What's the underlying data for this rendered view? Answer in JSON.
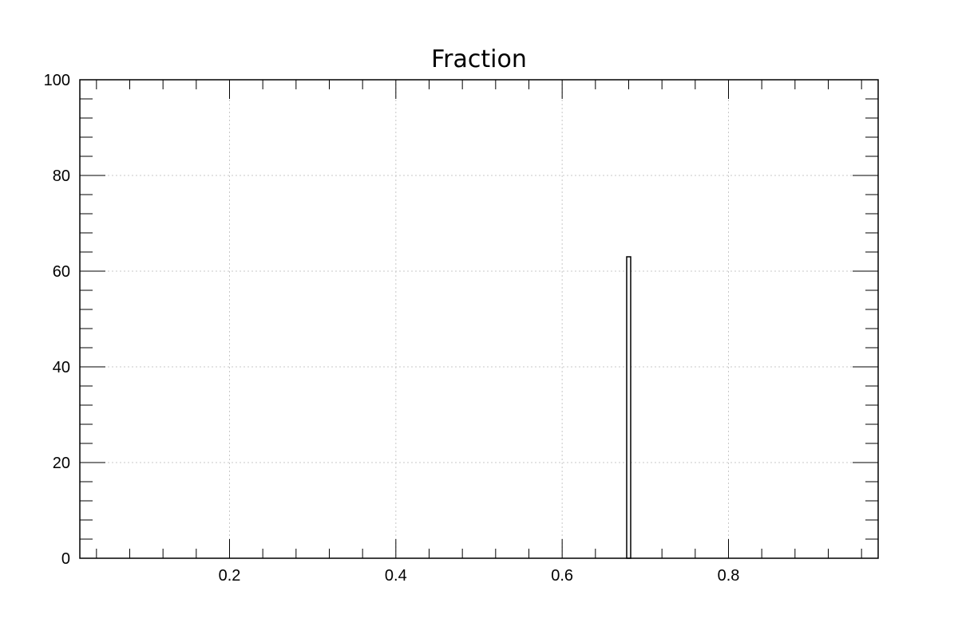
{
  "chart_data": {
    "type": "bar",
    "title": "Fraction",
    "xlabel": "",
    "ylabel": "",
    "xlim": [
      0.02,
      0.98
    ],
    "ylim": [
      0,
      100
    ],
    "x_ticks": [
      0.2,
      0.4,
      0.6,
      0.8
    ],
    "x_tick_labels": [
      "0.2",
      "0.4",
      "0.6",
      "0.8"
    ],
    "x_minor_step": 0.04,
    "y_ticks": [
      0,
      20,
      40,
      60,
      80,
      100
    ],
    "y_tick_labels": [
      "0",
      "20",
      "40",
      "60",
      "80",
      "100"
    ],
    "y_minor_step": 4,
    "grid": true,
    "bins": [
      {
        "x_low": 0.6776,
        "x_high": 0.6824,
        "value": 63
      }
    ],
    "colors": {
      "bar_fill": "#ffffff",
      "bar_stroke": "#000000",
      "grid": "#c8c8c8",
      "axis": "#000000"
    }
  }
}
